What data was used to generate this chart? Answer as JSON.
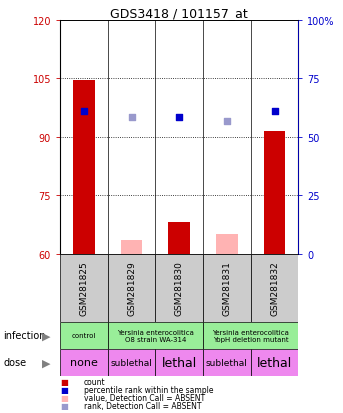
{
  "title": "GDS3418 / 101157_at",
  "samples": [
    "GSM281825",
    "GSM281829",
    "GSM281830",
    "GSM281831",
    "GSM281832"
  ],
  "ylim_left": [
    60,
    120
  ],
  "ylim_right": [
    0,
    100
  ],
  "yticks_left": [
    60,
    75,
    90,
    105,
    120
  ],
  "yticks_right": [
    0,
    25,
    50,
    75,
    100
  ],
  "bar_values": [
    104.5,
    null,
    68.0,
    null,
    91.5
  ],
  "bar_absent_values": [
    null,
    63.5,
    null,
    65.0,
    null
  ],
  "bar_color_present": "#cc0000",
  "bar_color_absent": "#ffb3b3",
  "dot_left_values": [
    96.5,
    null,
    95.0,
    null,
    96.5
  ],
  "dot_left_absent_values": [
    null,
    95.0,
    null,
    94.0,
    null
  ],
  "dot_color_present": "#0000cc",
  "dot_color_absent": "#9999cc",
  "inf_groups": [
    [
      0,
      1,
      "control"
    ],
    [
      1,
      3,
      "Yersinia enterocolitica\nO8 strain WA-314"
    ],
    [
      3,
      5,
      "Yersinia enterocolitica\nYopH deletion mutant"
    ]
  ],
  "inf_color": "#99ee99",
  "dose_labels": [
    "none",
    "sublethal",
    "lethal",
    "sublethal",
    "lethal"
  ],
  "dose_color": "#ee88ee",
  "sample_bg_color": "#cccccc",
  "left_axis_color": "#cc0000",
  "right_axis_color": "#0000cc",
  "legend_items": [
    [
      "#cc0000",
      "count"
    ],
    [
      "#0000cc",
      "percentile rank within the sample"
    ],
    [
      "#ffb3b3",
      "value, Detection Call = ABSENT"
    ],
    [
      "#9999cc",
      "rank, Detection Call = ABSENT"
    ]
  ]
}
